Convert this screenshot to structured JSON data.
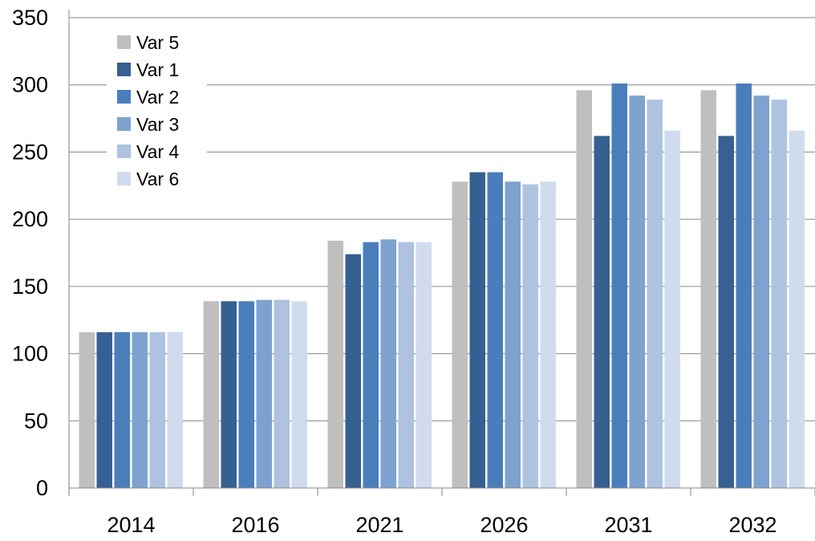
{
  "chart_data": {
    "type": "bar",
    "categories": [
      "2014",
      "2016",
      "2021",
      "2026",
      "2031",
      "2032"
    ],
    "series": [
      {
        "name": "Var 5",
        "color": "#bfbfbf",
        "values": [
          116,
          139,
          184,
          228,
          296,
          296
        ]
      },
      {
        "name": "Var 1",
        "color": "#376092",
        "values": [
          116,
          139,
          174,
          235,
          262,
          262
        ]
      },
      {
        "name": "Var 2",
        "color": "#4a7ebb",
        "values": [
          116,
          139,
          183,
          235,
          301,
          301
        ]
      },
      {
        "name": "Var 3",
        "color": "#7ea2cf",
        "values": [
          116,
          140,
          185,
          228,
          292,
          292
        ]
      },
      {
        "name": "Var 4",
        "color": "#adc3e0",
        "values": [
          116,
          140,
          183,
          226,
          289,
          289
        ]
      },
      {
        "name": "Var 6",
        "color": "#d0dcee",
        "values": [
          116,
          139,
          183,
          228,
          266,
          266
        ]
      }
    ],
    "yticks": [
      "0",
      "50",
      "100",
      "150",
      "200",
      "250",
      "300",
      "350"
    ],
    "ylim": [
      0,
      350
    ],
    "grid": true,
    "legend_position": "top-left",
    "title": "",
    "xlabel": "",
    "ylabel": ""
  }
}
